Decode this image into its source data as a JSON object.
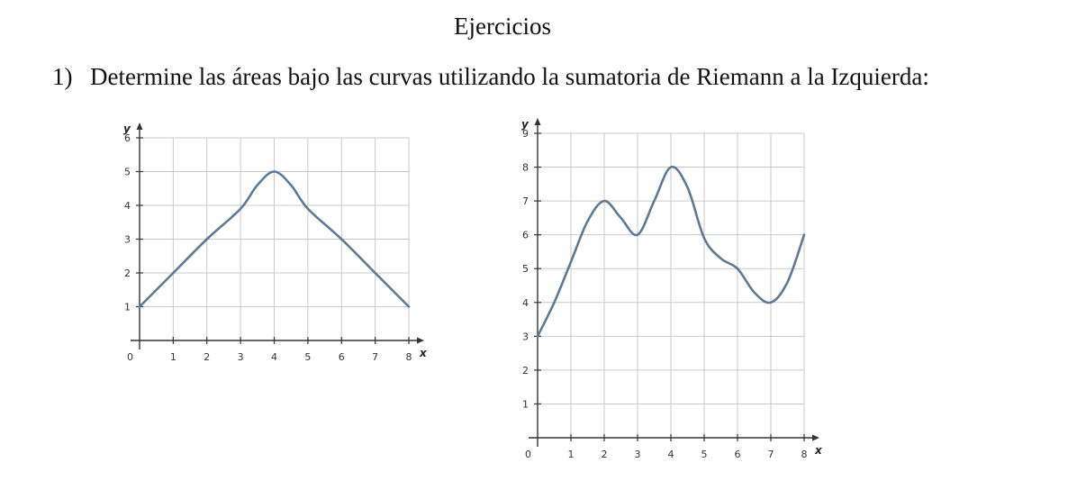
{
  "document": {
    "title": "Ejercicios",
    "exercise_number": "1)",
    "exercise_text": "Determine las áreas bajo las curvas utilizando la sumatoria de Riemann a la Izquierda:"
  },
  "chart_data": [
    {
      "type": "line",
      "xlabel": "x",
      "ylabel": "y",
      "origin_label": "0",
      "xlim": [
        0,
        8
      ],
      "ylim": [
        0,
        6
      ],
      "xticks": [
        "1",
        "2",
        "3",
        "4",
        "5",
        "6",
        "7",
        "8"
      ],
      "yticks": [
        "1",
        "2",
        "3",
        "4",
        "5",
        "6"
      ],
      "grid": true,
      "series": [
        {
          "x": [
            0,
            1,
            2,
            3,
            3.5,
            4,
            4.5,
            5,
            6,
            7,
            8
          ],
          "y": [
            1,
            2,
            3,
            3.9,
            4.6,
            5,
            4.6,
            3.9,
            3,
            2,
            1
          ]
        }
      ]
    },
    {
      "type": "line",
      "xlabel": "x",
      "ylabel": "y",
      "origin_label": "0",
      "xlim": [
        0,
        8
      ],
      "ylim": [
        0,
        9
      ],
      "xticks": [
        "1",
        "2",
        "3",
        "4",
        "5",
        "6",
        "7",
        "8"
      ],
      "yticks": [
        "1",
        "2",
        "3",
        "4",
        "5",
        "6",
        "7",
        "8",
        "9"
      ],
      "grid": true,
      "series": [
        {
          "x": [
            0,
            0.5,
            1,
            1.5,
            2,
            2.5,
            3,
            3.5,
            4,
            4.5,
            5,
            5.5,
            6,
            6.5,
            7,
            7.5,
            8
          ],
          "y": [
            3,
            4,
            5.2,
            6.4,
            7,
            6.5,
            6,
            7,
            8,
            7.4,
            5.9,
            5.3,
            5,
            4.3,
            4,
            4.6,
            6
          ]
        }
      ]
    }
  ]
}
